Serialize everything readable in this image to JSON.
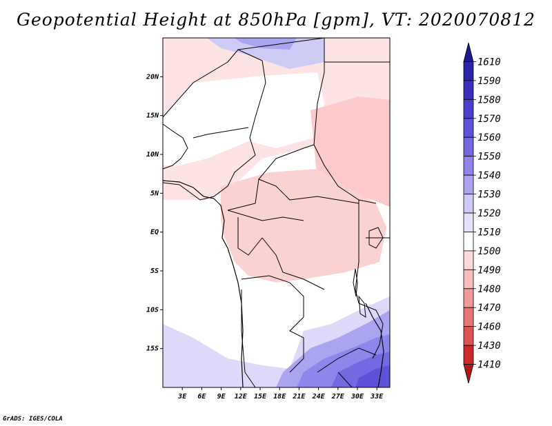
{
  "title": "Geopotential Height at 850hPa [gpm], VT: 2020070812",
  "credit": "GrADS: IGES/COLA",
  "map": {
    "lat_labels": [
      "20N",
      "15N",
      "10N",
      "5N",
      "EQ",
      "5S",
      "10S",
      "15S"
    ],
    "lon_labels": [
      "3E",
      "6E",
      "9E",
      "12E",
      "15E",
      "18E",
      "21E",
      "24E",
      "27E",
      "30E",
      "33E"
    ],
    "lat_values": [
      20,
      15,
      10,
      5,
      0,
      -5,
      -10,
      -15
    ],
    "lon_values": [
      3,
      6,
      9,
      12,
      15,
      18,
      21,
      24,
      27,
      30,
      33
    ],
    "lon_range": [
      0,
      35
    ],
    "lat_range": [
      -20,
      25
    ]
  },
  "colorbar": {
    "labels": [
      "1610",
      "1590",
      "1580",
      "1570",
      "1560",
      "1550",
      "1540",
      "1530",
      "1520",
      "1510",
      "1500",
      "1490",
      "1480",
      "1470",
      "1460",
      "1430",
      "1410"
    ],
    "colors": [
      "#1d1a8f",
      "#2a23a8",
      "#3a2fbb",
      "#4b3fcb",
      "#5d52d8",
      "#7469e0",
      "#8e86ea",
      "#aaa5f0",
      "#cdcaf6",
      "#e3e1fa",
      "#ffffff",
      "#fdd9d9",
      "#f7bcbc",
      "#f09a9a",
      "#e87676",
      "#dd5252",
      "#cc2a2a",
      "#b01818"
    ]
  }
}
